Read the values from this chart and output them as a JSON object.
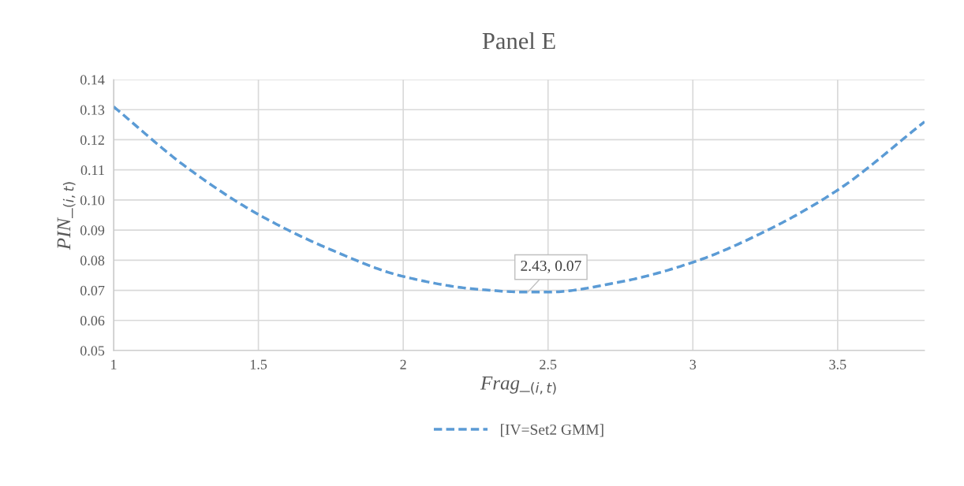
{
  "chart_data": {
    "type": "line",
    "title": "Panel E",
    "xlabel": "Frag_$_{(i,t)}$",
    "ylabel": "PIN_$_{(i,t)}$",
    "series": [
      {
        "name": "[IV=Set2 GMM]",
        "color": "#5b9bd5",
        "x": [
          1,
          1.25,
          1.5,
          1.75,
          2,
          2.25,
          2.43,
          2.5,
          2.75,
          3,
          3.25,
          3.5,
          3.8
        ],
        "values": [
          0.131,
          0.111,
          0.0952,
          0.0835,
          0.0746,
          0.0704,
          0.0694,
          0.0694,
          0.0728,
          0.0793,
          0.0896,
          0.1033,
          0.126
        ]
      }
    ],
    "xlim": [
      1,
      3.8
    ],
    "xticks": [
      1,
      1.5,
      2,
      2.5,
      3,
      3.5
    ],
    "ylim": [
      0.05,
      0.14
    ],
    "yticks": [
      {
        "value": 0.05,
        "label": "0.05"
      },
      {
        "value": 0.06,
        "label": "0.06"
      },
      {
        "value": 0.07,
        "label": "0.07"
      },
      {
        "value": 0.08,
        "label": "0.08"
      },
      {
        "value": 0.09,
        "label": "0.09"
      },
      {
        "value": 0.1,
        "label": "0.10"
      },
      {
        "value": 0.11,
        "label": "0.11"
      },
      {
        "value": 0.12,
        "label": "0.12"
      },
      {
        "value": 0.13,
        "label": "0.13"
      },
      {
        "value": 0.14,
        "label": "0.14"
      }
    ],
    "annotations": [
      {
        "text": "2.43, 0.07",
        "x": 2.43,
        "y": 0.0694
      }
    ],
    "grid": true,
    "legend": "bottom",
    "line_style": "dashed",
    "marker": "none"
  }
}
